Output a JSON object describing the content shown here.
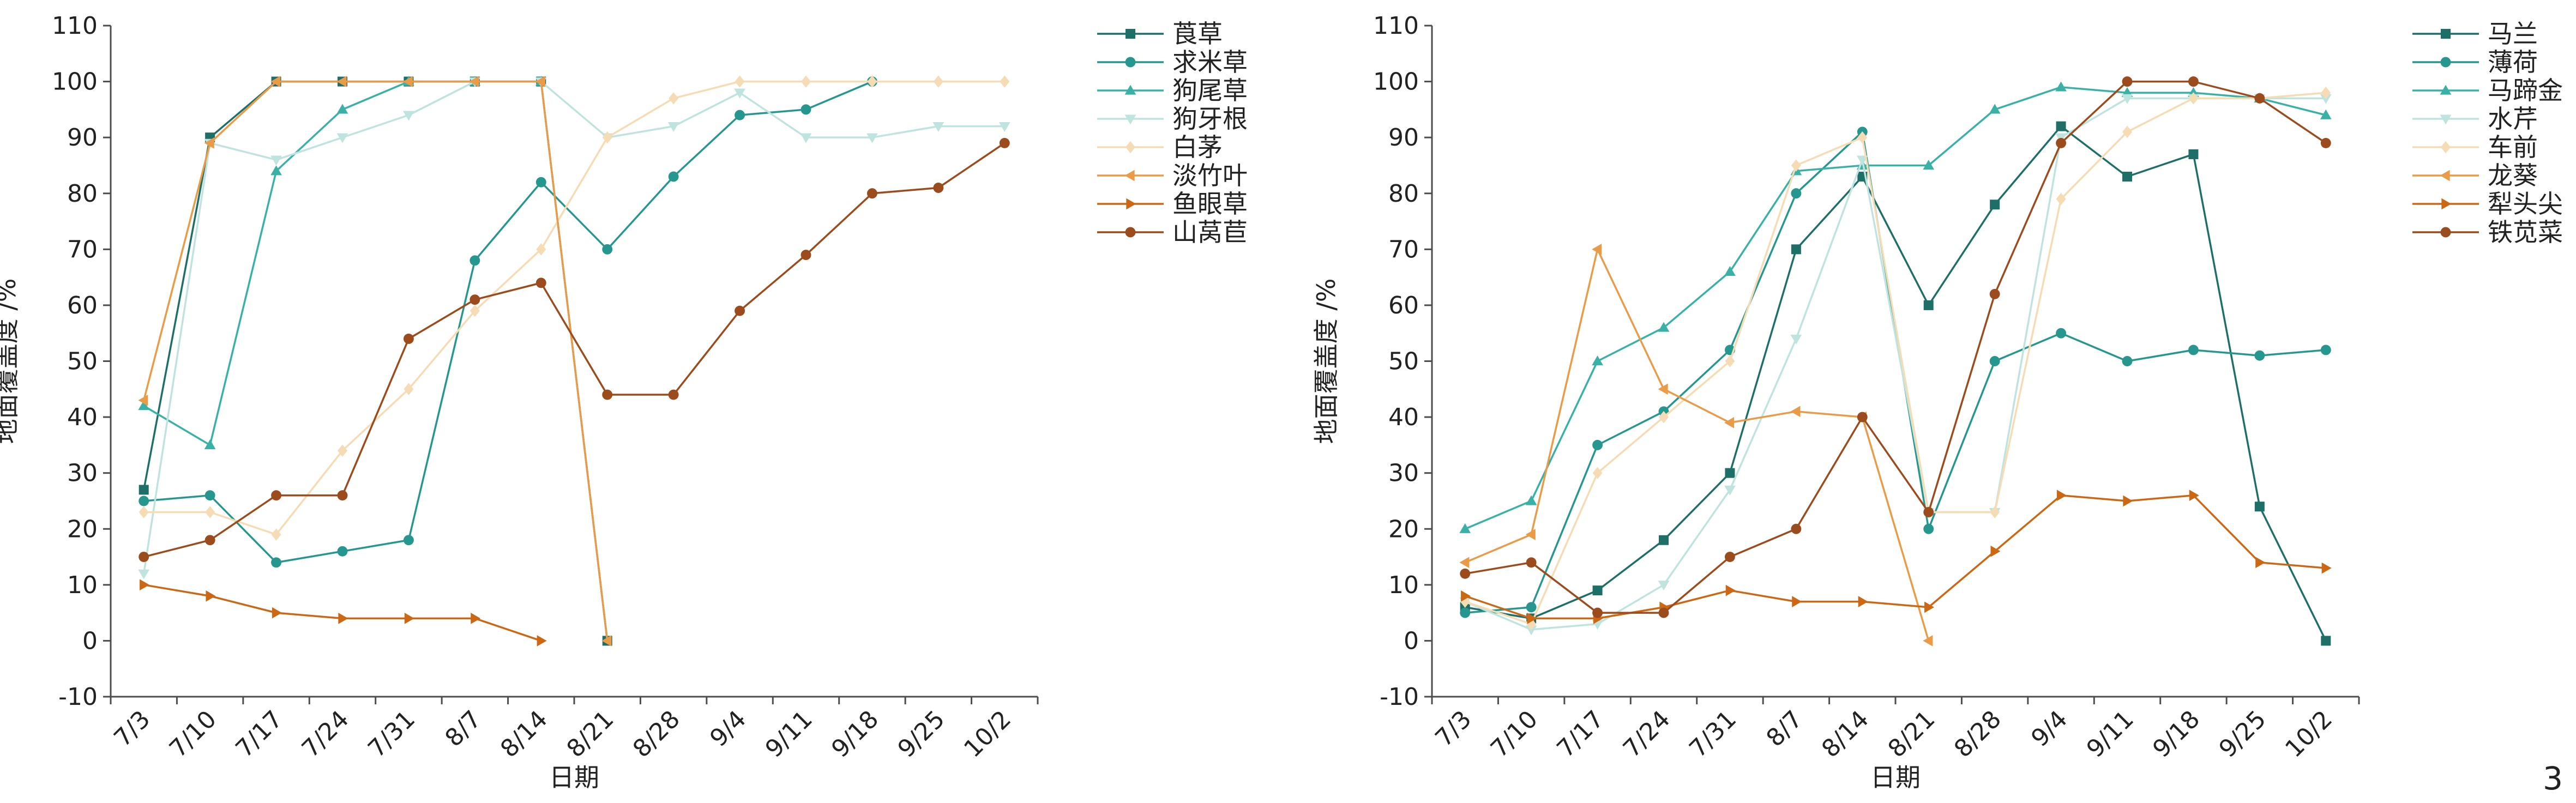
{
  "page_number": "3",
  "chart_data": [
    {
      "type": "line",
      "xlabel": "日期",
      "ylabel": "地面覆盖度 /%",
      "ylim": [
        -10,
        110
      ],
      "yticks": [
        -10,
        0,
        10,
        20,
        30,
        40,
        50,
        60,
        70,
        80,
        90,
        100,
        110
      ],
      "categories": [
        "7/3",
        "7/10",
        "7/17",
        "7/24",
        "7/31",
        "8/7",
        "8/14",
        "8/21",
        "8/28",
        "9/4",
        "9/11",
        "9/18",
        "9/25",
        "10/2"
      ],
      "legend_position": "top-right",
      "grid": false,
      "series": [
        {
          "name": "莨草",
          "color": "#1e6f68",
          "marker": "square",
          "values": [
            27,
            90,
            100,
            100,
            100,
            100,
            100,
            0,
            null,
            null,
            null,
            null,
            null,
            null
          ]
        },
        {
          "name": "求米草",
          "color": "#26978f",
          "marker": "circle",
          "values": [
            25,
            26,
            14,
            16,
            18,
            68,
            82,
            70,
            83,
            94,
            95,
            100,
            null,
            null
          ]
        },
        {
          "name": "狗尾草",
          "color": "#39b1a7",
          "marker": "triangle-up",
          "values": [
            42,
            35,
            84,
            95,
            100,
            100,
            100,
            null,
            null,
            null,
            null,
            null,
            null,
            null
          ]
        },
        {
          "name": "狗牙根",
          "color": "#bfe4df",
          "marker": "triangle-down",
          "values": [
            12,
            89,
            86,
            90,
            94,
            100,
            100,
            90,
            92,
            98,
            90,
            90,
            92,
            92
          ]
        },
        {
          "name": "白茅",
          "color": "#f6dcb4",
          "marker": "diamond",
          "values": [
            23,
            23,
            19,
            34,
            45,
            59,
            70,
            90,
            97,
            100,
            100,
            100,
            100,
            100
          ]
        },
        {
          "name": "淡竹叶",
          "color": "#ea9b48",
          "marker": "triangle-left",
          "values": [
            43,
            89,
            100,
            100,
            100,
            100,
            100,
            0,
            null,
            null,
            null,
            null,
            null,
            null
          ]
        },
        {
          "name": "鱼眼草",
          "color": "#cc6714",
          "marker": "triangle-right",
          "values": [
            10,
            8,
            5,
            4,
            4,
            4,
            0,
            null,
            null,
            null,
            null,
            null,
            null,
            null
          ]
        },
        {
          "name": "山莴苣",
          "color": "#9c4b1d",
          "marker": "circle",
          "values": [
            15,
            18,
            26,
            26,
            54,
            61,
            64,
            44,
            44,
            59,
            69,
            80,
            81,
            89
          ]
        }
      ]
    },
    {
      "type": "line",
      "xlabel": "日期",
      "ylabel": "地面覆盖度 /%",
      "ylim": [
        -10,
        110
      ],
      "yticks": [
        -10,
        0,
        10,
        20,
        30,
        40,
        50,
        60,
        70,
        80,
        90,
        100,
        110
      ],
      "categories": [
        "7/3",
        "7/10",
        "7/17",
        "7/24",
        "7/31",
        "8/7",
        "8/14",
        "8/21",
        "8/28",
        "9/4",
        "9/11",
        "9/18",
        "9/25",
        "10/2"
      ],
      "legend_position": "top-right",
      "grid": false,
      "series": [
        {
          "name": "马兰",
          "color": "#1e6f68",
          "marker": "square",
          "values": [
            6,
            4,
            9,
            18,
            30,
            70,
            83,
            60,
            78,
            92,
            83,
            87,
            24,
            0
          ]
        },
        {
          "name": "薄荷",
          "color": "#26978f",
          "marker": "circle",
          "values": [
            5,
            6,
            35,
            41,
            52,
            80,
            91,
            20,
            50,
            55,
            50,
            52,
            51,
            52
          ]
        },
        {
          "name": "马蹄金",
          "color": "#39b1a7",
          "marker": "triangle-up",
          "values": [
            20,
            25,
            50,
            56,
            66,
            84,
            85,
            85,
            95,
            99,
            98,
            98,
            97,
            94
          ]
        },
        {
          "name": "水芹",
          "color": "#bfe4df",
          "marker": "triangle-down",
          "values": [
            7,
            2,
            3,
            10,
            27,
            54,
            86,
            23,
            23,
            90,
            97,
            97,
            97,
            97
          ]
        },
        {
          "name": "车前",
          "color": "#f6dcb4",
          "marker": "diamond",
          "values": [
            7,
            3,
            30,
            40,
            50,
            85,
            90,
            23,
            23,
            79,
            91,
            97,
            97,
            98
          ]
        },
        {
          "name": "龙葵",
          "color": "#ea9b48",
          "marker": "triangle-left",
          "values": [
            14,
            19,
            70,
            45,
            39,
            41,
            40,
            0,
            null,
            null,
            null,
            null,
            null,
            null
          ]
        },
        {
          "name": "犁头尖",
          "color": "#cc6714",
          "marker": "triangle-right",
          "values": [
            8,
            4,
            4,
            6,
            9,
            7,
            7,
            6,
            16,
            26,
            25,
            26,
            14,
            13
          ]
        },
        {
          "name": "铁苋菜",
          "color": "#9c4b1d",
          "marker": "circle",
          "values": [
            12,
            14,
            5,
            5,
            15,
            20,
            40,
            23,
            62,
            89,
            100,
            100,
            97,
            89
          ]
        }
      ]
    }
  ]
}
